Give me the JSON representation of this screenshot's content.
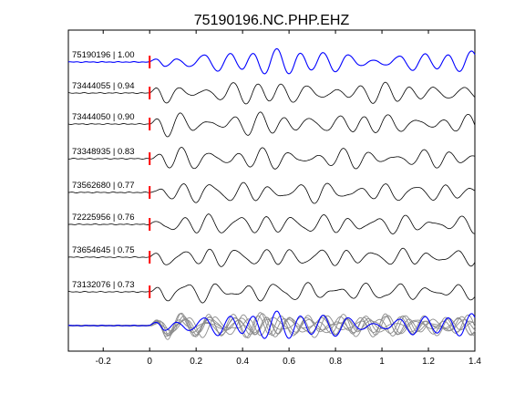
{
  "title": "75190196.NC.PHP.EHZ",
  "colors": {
    "reference_trace": "#0000ff",
    "other_traces": "#000000",
    "stack_gray": "#8c8c8c",
    "pick_marker": "#ff0000",
    "axes": "#000000",
    "background": "#ffffff"
  },
  "chart_data": {
    "type": "line",
    "title": "75190196.NC.PHP.EHZ",
    "xlabel": "",
    "ylabel": "",
    "xlim": [
      -0.35,
      1.4
    ],
    "xticks": [
      -0.2,
      0,
      0.2,
      0.4,
      0.6,
      0.8,
      1,
      1.2,
      1.4
    ],
    "xtick_labels": [
      "-0.2",
      "0",
      "0.2",
      "0.4",
      "0.6",
      "0.8",
      "1",
      "1.2",
      "1.4"
    ],
    "grid": false,
    "pick_time": 0,
    "series": [
      {
        "name": "75190196 | 1.00",
        "event_id": "75190196",
        "correlation": 1.0,
        "color": "#0000ff",
        "seed": 1,
        "main_period": 0.105,
        "amplitude": 1.0
      },
      {
        "name": "73444055 | 0.94",
        "event_id": "73444055",
        "correlation": 0.94,
        "color": "#000000",
        "seed": 2,
        "main_period": 0.11,
        "amplitude": 0.9
      },
      {
        "name": "73444050 | 0.90",
        "event_id": "73444050",
        "correlation": 0.9,
        "color": "#000000",
        "seed": 3,
        "main_period": 0.112,
        "amplitude": 0.9
      },
      {
        "name": "73348935 | 0.83",
        "event_id": "73348935",
        "correlation": 0.83,
        "color": "#000000",
        "seed": 4,
        "main_period": 0.115,
        "amplitude": 0.85
      },
      {
        "name": "73562680 | 0.77",
        "event_id": "73562680",
        "correlation": 0.77,
        "color": "#000000",
        "seed": 5,
        "main_period": 0.125,
        "amplitude": 0.85
      },
      {
        "name": "72225956 | 0.76",
        "event_id": "72225956",
        "correlation": 0.76,
        "color": "#000000",
        "seed": 6,
        "main_period": 0.12,
        "amplitude": 0.85
      },
      {
        "name": "73654645 | 0.75",
        "event_id": "73654645",
        "correlation": 0.75,
        "color": "#000000",
        "seed": 7,
        "main_period": 0.118,
        "amplitude": 0.8
      },
      {
        "name": "73132076 | 0.73",
        "event_id": "73132076",
        "correlation": 0.73,
        "color": "#000000",
        "seed": 8,
        "main_period": 0.13,
        "amplitude": 0.8
      }
    ],
    "stack": {
      "description_visible": false,
      "reference_color": "#0000ff",
      "member_color": "#8c8c8c"
    }
  }
}
